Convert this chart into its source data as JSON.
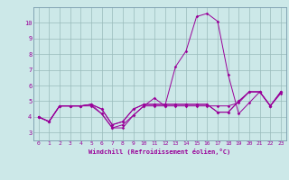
{
  "xlabel": "Windchill (Refroidissement éolien,°C)",
  "background_color": "#cce8e8",
  "grid_color": "#99bbbb",
  "line_color": "#990099",
  "spine_color": "#7799aa",
  "xlim": [
    -0.5,
    23.5
  ],
  "ylim": [
    2.5,
    11.0
  ],
  "yticks": [
    3,
    4,
    5,
    6,
    7,
    8,
    9,
    10
  ],
  "xticks": [
    0,
    1,
    2,
    3,
    4,
    5,
    6,
    7,
    8,
    9,
    10,
    11,
    12,
    13,
    14,
    15,
    16,
    17,
    18,
    19,
    20,
    21,
    22,
    23
  ],
  "series": [
    [
      4.0,
      3.7,
      4.7,
      4.7,
      4.7,
      4.7,
      4.2,
      3.3,
      3.3,
      4.1,
      4.7,
      5.2,
      4.7,
      7.2,
      8.2,
      10.4,
      10.6,
      10.1,
      6.7,
      4.2,
      4.9,
      5.6,
      4.7,
      5.6
    ],
    [
      4.0,
      3.7,
      4.7,
      4.7,
      4.7,
      4.8,
      4.2,
      3.3,
      3.5,
      4.1,
      4.7,
      4.7,
      4.7,
      4.7,
      4.7,
      4.7,
      4.7,
      4.7,
      4.7,
      4.9,
      5.6,
      5.6,
      4.7,
      5.6
    ],
    [
      4.0,
      3.7,
      4.7,
      4.7,
      4.7,
      4.8,
      4.5,
      3.5,
      3.7,
      4.5,
      4.8,
      4.8,
      4.8,
      4.8,
      4.8,
      4.8,
      4.8,
      4.3,
      4.3,
      5.0,
      5.6,
      5.6,
      4.7,
      5.6
    ],
    [
      4.0,
      3.7,
      4.7,
      4.7,
      4.7,
      4.8,
      4.5,
      3.5,
      3.7,
      4.5,
      4.8,
      4.8,
      4.8,
      4.8,
      4.8,
      4.8,
      4.8,
      4.3,
      4.3,
      5.0,
      5.6,
      5.6,
      4.7,
      5.5
    ]
  ]
}
